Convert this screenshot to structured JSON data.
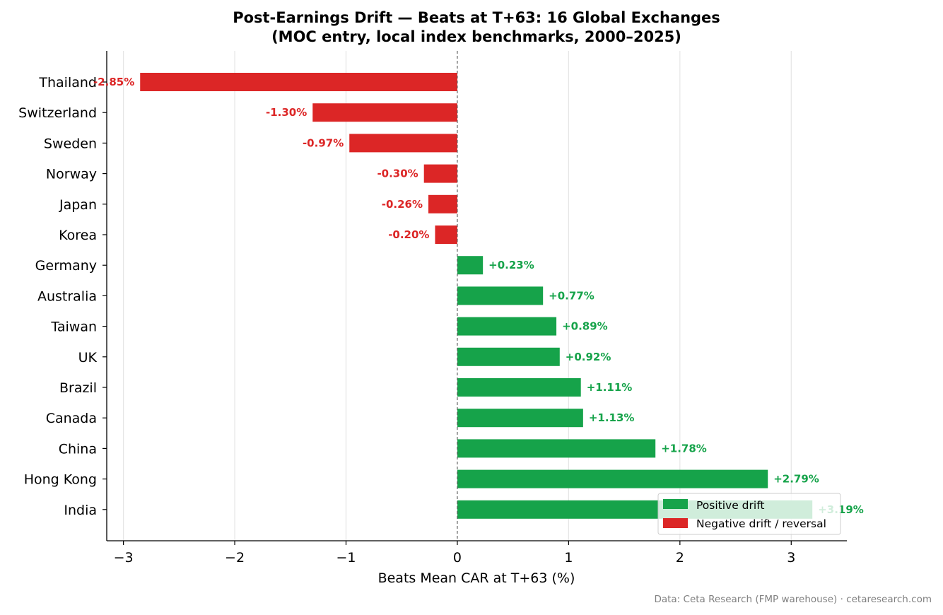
{
  "colors": {
    "positive": "#16a34a",
    "negative": "#dc2626",
    "grid": "#e5e5e5",
    "zero_line": "#555555",
    "source_text": "#808080"
  },
  "chart_data": {
    "type": "bar",
    "orientation": "horizontal",
    "title_line1": "Post-Earnings Drift — Beats at T+63: 16 Global Exchanges",
    "title_line2": "(MOC entry, local index benchmarks, 2000–2025)",
    "xlabel": "Beats Mean CAR at T+63 (%)",
    "ylabel": "",
    "xlim": [
      -3.15,
      3.5
    ],
    "xticks": [
      -3,
      -2,
      -1,
      0,
      1,
      2,
      3
    ],
    "xtick_labels": [
      "−3",
      "−2",
      "−1",
      "0",
      "1",
      "2",
      "3"
    ],
    "grid": "vertical",
    "legend_position": "bottom-right",
    "categories": [
      "Thailand",
      "Switzerland",
      "Sweden",
      "Norway",
      "Japan",
      "Korea",
      "Germany",
      "Australia",
      "Taiwan",
      "UK",
      "Brazil",
      "Canada",
      "China",
      "Hong Kong",
      "India"
    ],
    "values": [
      -2.85,
      -1.3,
      -0.97,
      -0.3,
      -0.26,
      -0.2,
      0.23,
      0.77,
      0.89,
      0.92,
      1.11,
      1.13,
      1.78,
      2.79,
      3.19
    ],
    "value_labels": [
      "-2.85%",
      "-1.30%",
      "-0.97%",
      "-0.30%",
      "-0.26%",
      "-0.20%",
      "+0.23%",
      "+0.77%",
      "+0.89%",
      "+0.92%",
      "+1.11%",
      "+1.13%",
      "+1.78%",
      "+2.79%",
      "+3.19%"
    ],
    "legend": [
      {
        "label": "Positive drift",
        "color": "#16a34a"
      },
      {
        "label": "Negative drift / reversal",
        "color": "#dc2626"
      }
    ],
    "source": "Data: Ceta Research (FMP warehouse) · cetaresearch.com"
  }
}
